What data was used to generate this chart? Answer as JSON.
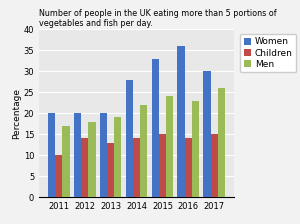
{
  "title": "Number of people in the UK eating more than 5 portions of vegetables and fish per day.",
  "years": [
    2011,
    2012,
    2013,
    2014,
    2015,
    2016,
    2017
  ],
  "women": [
    20,
    20,
    20,
    28,
    33,
    36,
    30
  ],
  "children": [
    10,
    14,
    13,
    14,
    15,
    14,
    15
  ],
  "men": [
    17,
    18,
    19,
    22,
    24,
    23,
    26
  ],
  "colors": {
    "women": "#4472C4",
    "children": "#BE4B48",
    "men": "#9BBB59"
  },
  "ylabel": "Percentage",
  "ylim": [
    0,
    40
  ],
  "yticks": [
    0,
    5,
    10,
    15,
    20,
    25,
    30,
    35,
    40
  ],
  "bar_width": 0.28,
  "legend_labels": [
    "Women",
    "Children",
    "Men"
  ],
  "title_fontsize": 5.8,
  "axis_fontsize": 6.5,
  "tick_fontsize": 6.0,
  "legend_fontsize": 6.5,
  "bg_color": "#E8E8E8",
  "fig_color": "#F2F2F2",
  "grid_color": "#FFFFFF"
}
